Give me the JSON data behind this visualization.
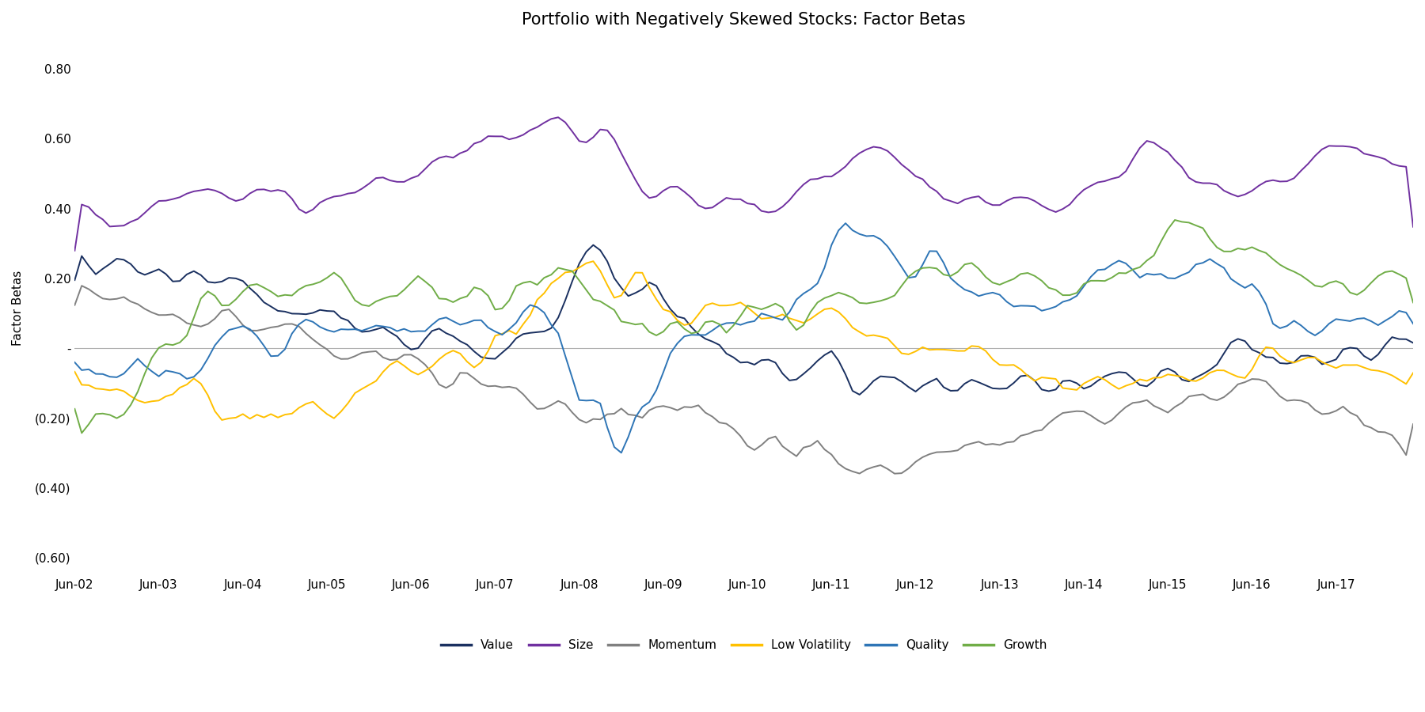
{
  "title": "Portfolio with Negatively Skewed Stocks: Factor Betas",
  "ylabel": "Factor Betas",
  "ylim": [
    -0.65,
    0.88
  ],
  "yticks": [
    0.8,
    0.6,
    0.4,
    0.2,
    0.0,
    -0.2,
    -0.4,
    -0.6
  ],
  "colors": {
    "Value": "#1a3060",
    "Size": "#7030a0",
    "Momentum": "#808080",
    "Low Volatility": "#ffc000",
    "Quality": "#2e75b6",
    "Growth": "#70ad47"
  },
  "legend_order": [
    "Value",
    "Size",
    "Momentum",
    "Low Volatility",
    "Quality",
    "Growth"
  ],
  "x_labels": [
    "Jun-02",
    "Jun-03",
    "Jun-04",
    "Jun-05",
    "Jun-06",
    "Jun-07",
    "Jun-08",
    "Jun-09",
    "Jun-10",
    "Jun-11",
    "Jun-12",
    "Jun-13",
    "Jun-14",
    "Jun-15",
    "Jun-16",
    "Jun-17"
  ],
  "n_points": 192,
  "background_color": "#ffffff",
  "zero_line_color": "#b0b0b0",
  "title_fontsize": 15,
  "axis_fontsize": 11,
  "legend_fontsize": 11,
  "line_width": 1.4
}
